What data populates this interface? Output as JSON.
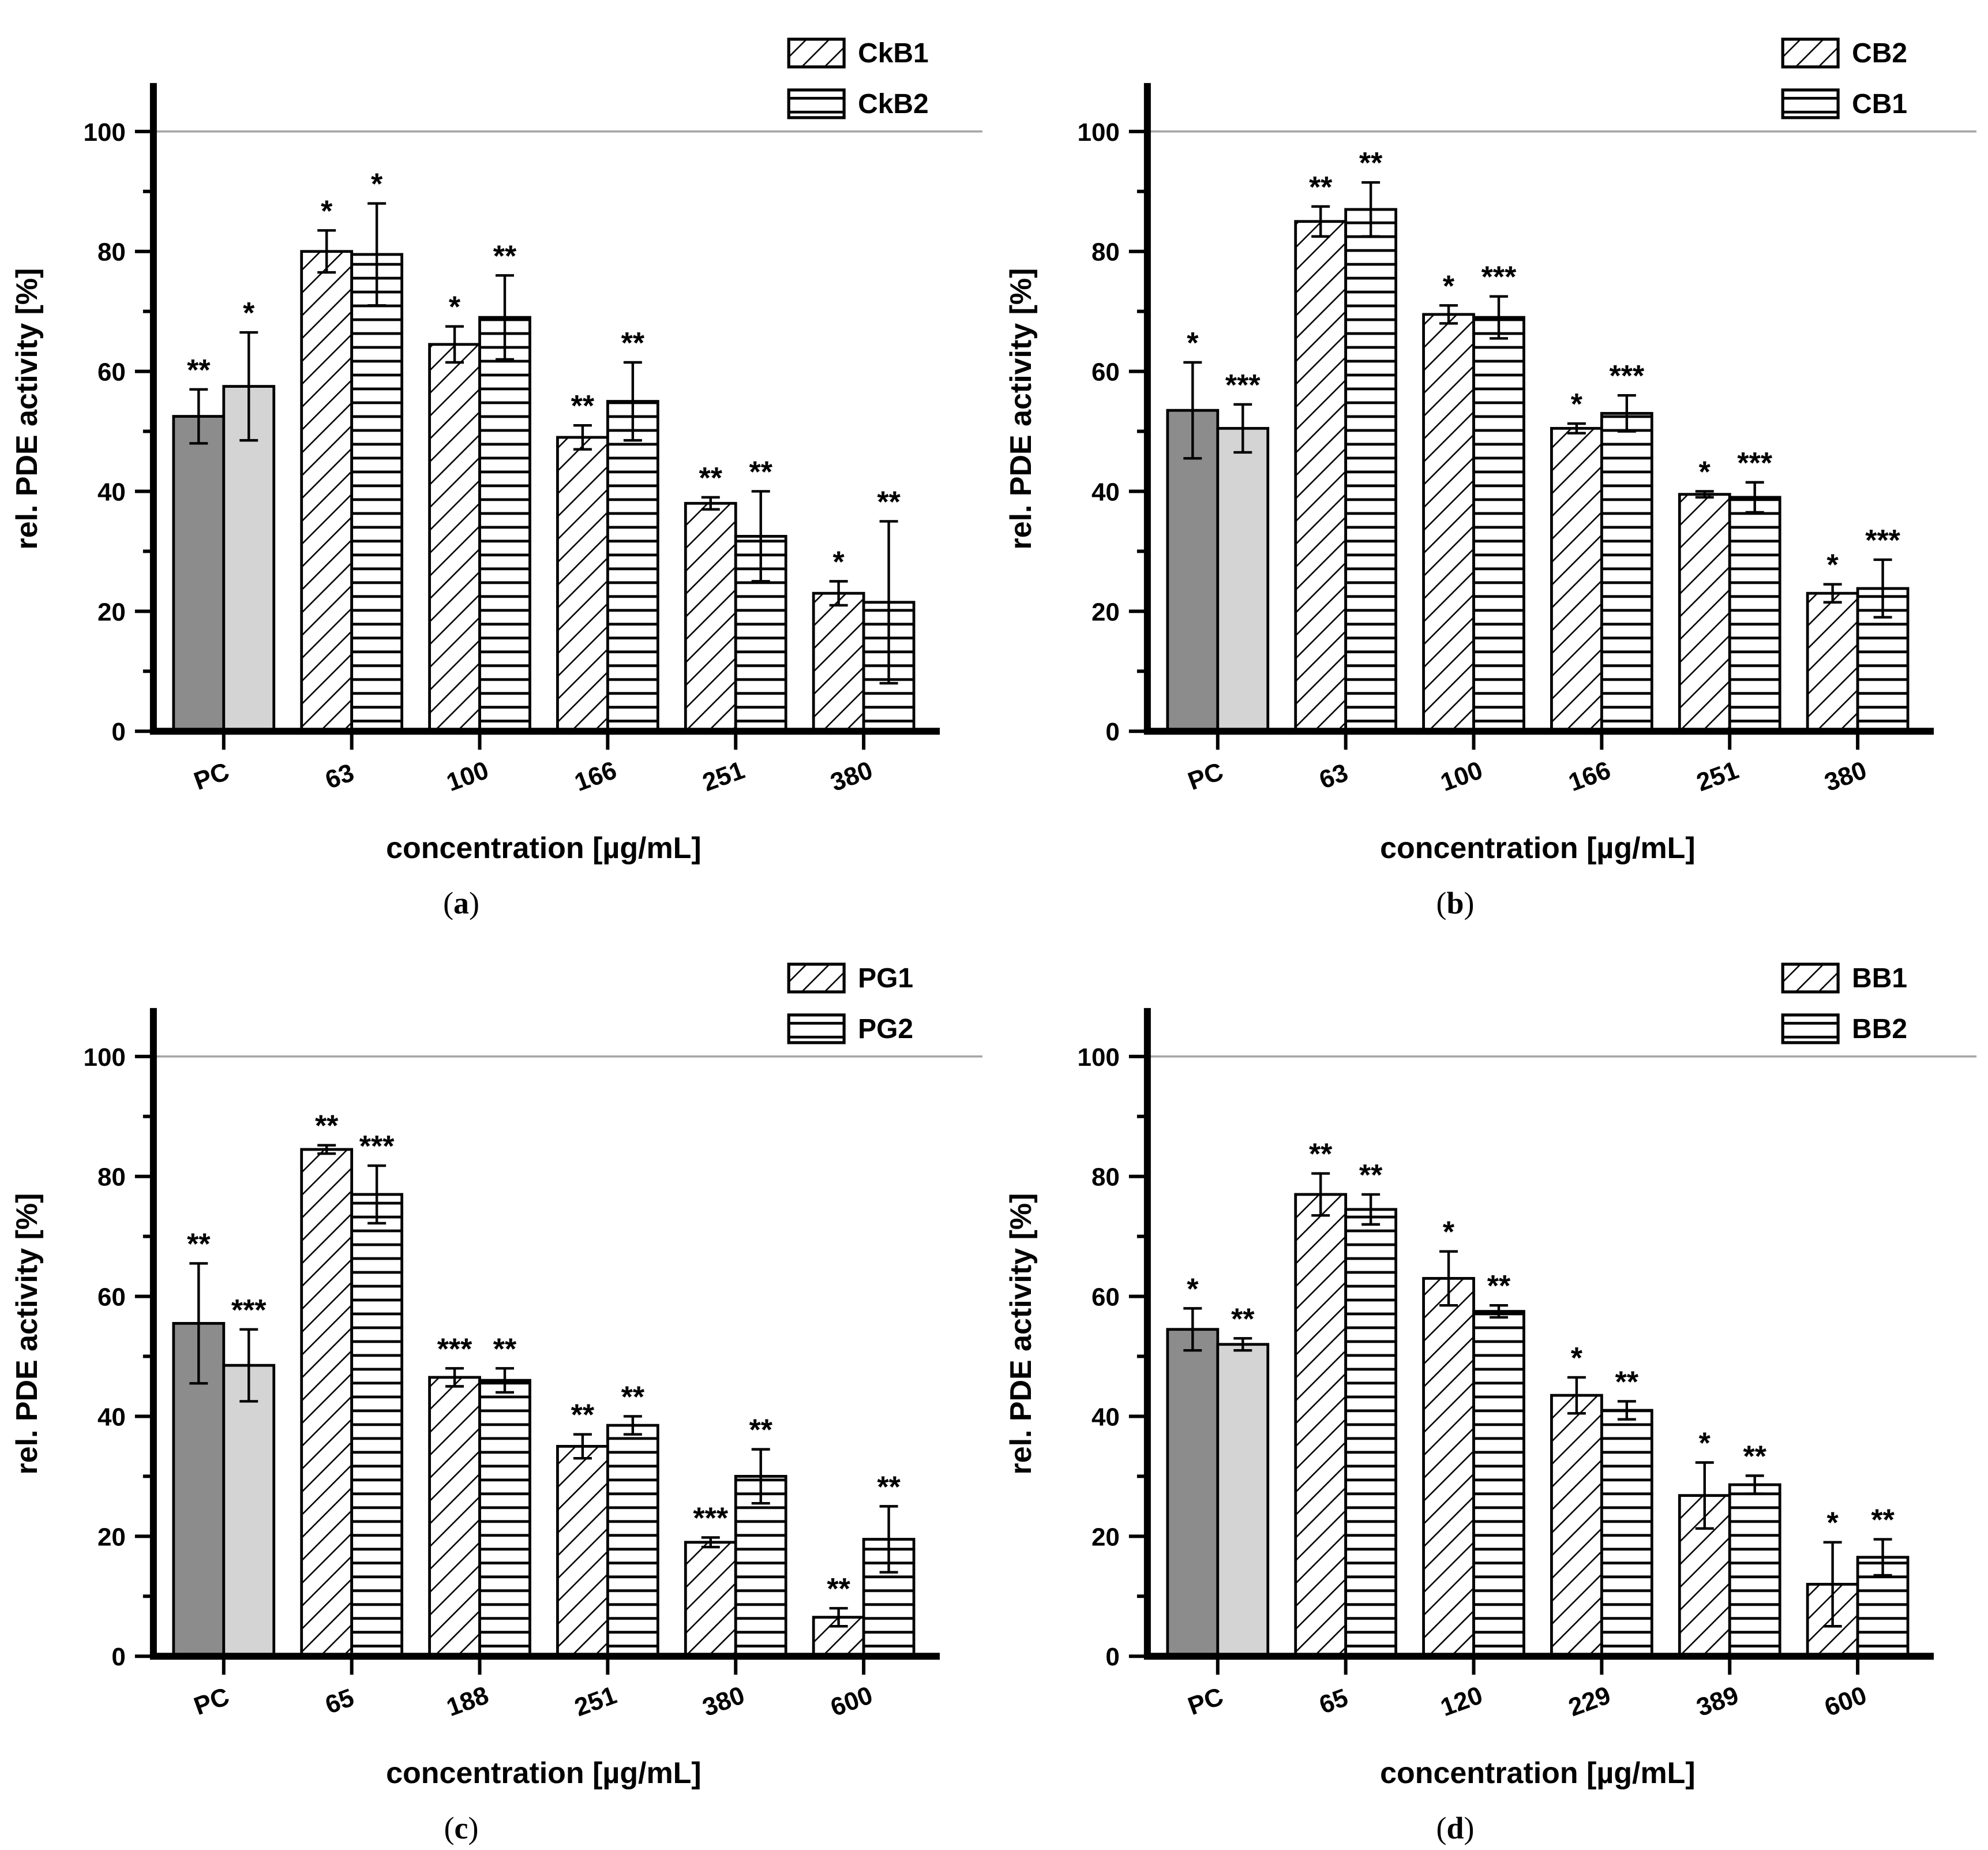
{
  "figure": {
    "description": "Four-panel bar chart figure of relative PDE activity versus extract concentration",
    "colors": {
      "pc_dark": "#8c8c8c",
      "pc_light": "#d4d4d4",
      "bar_outline": "#000000",
      "gridline": "#a6a6a6",
      "background": "#ffffff"
    }
  },
  "chart_data": [
    {
      "type": "bar",
      "panel_letter": "a",
      "caption": "(a)",
      "xlabel": "concentration [µg/mL]",
      "ylabel": "rel. PDE activity [%]",
      "ylim": [
        0,
        107.5
      ],
      "yticks_major": [
        0,
        20,
        40,
        60,
        80,
        100
      ],
      "yticks_minor": [
        10,
        30,
        50,
        70,
        90
      ],
      "gridline_y": 100,
      "grid": "single-line-at-100",
      "legend_position": "top-right",
      "categories": [
        "PC",
        "63",
        "100",
        "166",
        "251",
        "380"
      ],
      "pc_category": "PC",
      "series": [
        {
          "name": "CkB1",
          "hatch": "diagonal",
          "values": [
            52.5,
            80,
            64.5,
            49,
            38,
            23
          ],
          "errors": [
            4.5,
            3.5,
            3,
            2,
            1,
            2
          ],
          "sig": [
            "**",
            "*",
            "*",
            "**",
            "**",
            "*"
          ]
        },
        {
          "name": "CkB2",
          "hatch": "horizontal",
          "values": [
            57.5,
            79.5,
            69,
            55,
            32.5,
            21.5
          ],
          "errors": [
            9,
            8.5,
            7,
            6.5,
            7.5,
            13.5
          ],
          "sig": [
            "*",
            "*",
            "**",
            "**",
            "**",
            "**"
          ]
        }
      ]
    },
    {
      "type": "bar",
      "panel_letter": "b",
      "caption": "(b)",
      "xlabel": "concentration [µg/mL]",
      "ylabel": "rel. PDE activity [%]",
      "ylim": [
        0,
        107.5
      ],
      "yticks_major": [
        0,
        20,
        40,
        60,
        80,
        100
      ],
      "yticks_minor": [
        10,
        30,
        50,
        70,
        90
      ],
      "gridline_y": 100,
      "grid": "single-line-at-100",
      "legend_position": "top-right",
      "categories": [
        "PC",
        "63",
        "100",
        "166",
        "251",
        "380"
      ],
      "pc_category": "PC",
      "series": [
        {
          "name": "CB2",
          "hatch": "diagonal",
          "values": [
            53.5,
            85,
            69.5,
            50.5,
            39.5,
            23
          ],
          "errors": [
            8,
            2.5,
            1.5,
            0.8,
            0.5,
            1.5
          ],
          "sig": [
            "*",
            "**",
            "*",
            "*",
            "*",
            "*"
          ]
        },
        {
          "name": "CB1",
          "hatch": "horizontal",
          "values": [
            50.5,
            87,
            69,
            53,
            39,
            23.8
          ],
          "errors": [
            4,
            4.5,
            3.5,
            3,
            2.5,
            4.8
          ],
          "sig": [
            "***",
            "**",
            "***",
            "***",
            "***",
            "***"
          ]
        }
      ]
    },
    {
      "type": "bar",
      "panel_letter": "c",
      "caption": "(c)",
      "xlabel": "concentration [µg/mL]",
      "ylabel": "rel. PDE activity [%]",
      "ylim": [
        0,
        107.5
      ],
      "yticks_major": [
        0,
        20,
        40,
        60,
        80,
        100
      ],
      "yticks_minor": [
        10,
        30,
        50,
        70,
        90
      ],
      "gridline_y": 100,
      "grid": "single-line-at-100",
      "legend_position": "top-right",
      "categories": [
        "PC",
        "65",
        "188",
        "251",
        "380",
        "600"
      ],
      "pc_category": "PC",
      "series": [
        {
          "name": "PG1",
          "hatch": "diagonal",
          "values": [
            55.5,
            84.5,
            46.5,
            35,
            19,
            6.5
          ],
          "errors": [
            10,
            0.7,
            1.5,
            2,
            0.8,
            1.5
          ],
          "sig": [
            "**",
            "**",
            "***",
            "**",
            "***",
            "**"
          ]
        },
        {
          "name": "PG2",
          "hatch": "horizontal",
          "values": [
            48.5,
            77,
            46,
            38.5,
            30,
            19.5
          ],
          "errors": [
            6,
            4.8,
            2,
            1.5,
            4.5,
            5.5
          ],
          "sig": [
            "***",
            "***",
            "**",
            "**",
            "**",
            "**"
          ]
        }
      ]
    },
    {
      "type": "bar",
      "panel_letter": "d",
      "caption": "(d)",
      "xlabel": "concentration [µg/mL]",
      "ylabel": "rel. PDE activity [%]",
      "ylim": [
        0,
        107.5
      ],
      "yticks_major": [
        0,
        20,
        40,
        60,
        80,
        100
      ],
      "yticks_minor": [
        10,
        30,
        50,
        70,
        90
      ],
      "gridline_y": 100,
      "grid": "single-line-at-100",
      "legend_position": "top-right",
      "categories": [
        "PC",
        "65",
        "120",
        "229",
        "389",
        "600"
      ],
      "pc_category": "PC",
      "series": [
        {
          "name": "BB1",
          "hatch": "diagonal",
          "values": [
            54.5,
            77,
            63,
            43.5,
            26.8,
            12
          ],
          "errors": [
            3.5,
            3.5,
            4.5,
            3,
            5.5,
            7
          ],
          "sig": [
            "*",
            "**",
            "*",
            "*",
            "*",
            "*"
          ]
        },
        {
          "name": "BB2",
          "hatch": "horizontal",
          "values": [
            52,
            74.5,
            57.5,
            41,
            28.6,
            16.5
          ],
          "errors": [
            1,
            2.5,
            1,
            1.5,
            1.5,
            3
          ],
          "sig": [
            "**",
            "**",
            "**",
            "**",
            "**",
            "**"
          ]
        }
      ]
    }
  ]
}
